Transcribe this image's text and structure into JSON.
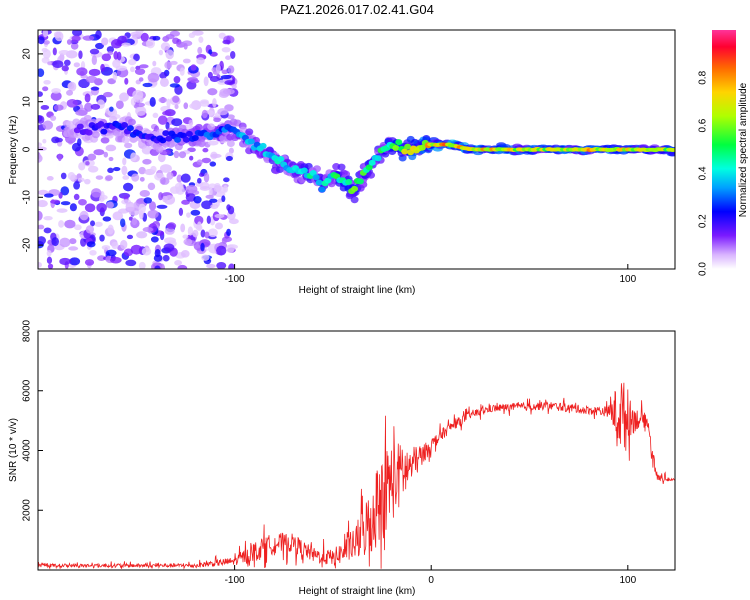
{
  "figure_title": "PAZ1.2026.017.02.41.G04",
  "chart_data": [
    {
      "type": "heatmap",
      "title": "PAZ1.2026.017.02.41.G04",
      "xlabel": "Height of straight line (km)",
      "ylabel": "Frequency (Hz)",
      "xlim": [
        -200,
        124
      ],
      "ylim": [
        -25,
        25
      ],
      "x_ticks": [
        -100,
        100
      ],
      "y_ticks": [
        -20,
        -10,
        0,
        10,
        20
      ],
      "colorbar": {
        "label": "Normalized spectral amplitude",
        "range": [
          0,
          1
        ],
        "ticks": [
          "0.0",
          "0.2",
          "0.4",
          "0.6",
          "0.8"
        ],
        "tick_values": [
          0.0,
          0.2,
          0.4,
          0.6,
          0.8
        ],
        "colors": [
          "#ffffff",
          "#d9b3ff",
          "#7a1aff",
          "#0000ff",
          "#00d8ff",
          "#00ff66",
          "#c8ff00",
          "#ffd400",
          "#ff5a00",
          "#ff0030"
        ]
      },
      "ridge": {
        "x": [
          -180,
          -160,
          -140,
          -120,
          -100,
          -90,
          -80,
          -70,
          -60,
          -55,
          -50,
          -45,
          -40,
          -35,
          -30,
          -25,
          -20,
          -15,
          -10,
          0,
          10,
          20,
          40,
          60,
          80,
          100,
          124
        ],
        "freq": [
          4,
          5,
          2,
          3,
          4,
          1,
          -2,
          -4,
          -5,
          -8,
          -5,
          -6,
          -8,
          -6,
          -3,
          0,
          1,
          0,
          0,
          1,
          1,
          0,
          0,
          0,
          0,
          0,
          0
        ],
        "amplitude": [
          0.2,
          0.25,
          0.25,
          0.3,
          0.35,
          0.4,
          0.45,
          0.4,
          0.5,
          0.45,
          0.5,
          0.55,
          0.6,
          0.6,
          0.5,
          0.55,
          0.6,
          0.7,
          0.75,
          0.8,
          0.85,
          0.8,
          0.75,
          0.7,
          0.8,
          0.75,
          0.7
        ]
      },
      "noise_region_x": [
        -200,
        -110
      ]
    },
    {
      "type": "line",
      "xlabel": "Height of straight line (km)",
      "ylabel": "SNR (10 * v/v)",
      "xlim": [
        -200,
        124
      ],
      "ylim": [
        0,
        8000
      ],
      "x_ticks": [
        -100,
        0,
        100
      ],
      "y_ticks": [
        2000,
        4000,
        6000,
        8000
      ],
      "series": [
        {
          "name": "SNR",
          "color": "#ee2020",
          "x": [
            -200,
            -120,
            -100,
            -90,
            -80,
            -70,
            -60,
            -50,
            -40,
            -35,
            -30,
            -25,
            -20,
            -15,
            -10,
            -5,
            0,
            10,
            20,
            30,
            40,
            60,
            80,
            90,
            95,
            97,
            100,
            105,
            110,
            112,
            115,
            124
          ],
          "baseline": [
            150,
            150,
            300,
            600,
            900,
            900,
            500,
            400,
            800,
            1200,
            1800,
            2500,
            3000,
            3200,
            3500,
            3800,
            4200,
            4800,
            5200,
            5400,
            5450,
            5500,
            5350,
            5300,
            5250,
            5200,
            5100,
            5050,
            5000,
            4100,
            3100,
            3000
          ],
          "noise": [
            80,
            100,
            200,
            500,
            500,
            450,
            350,
            400,
            700,
            1200,
            1800,
            2200,
            2000,
            1500,
            900,
            500,
            300,
            250,
            200,
            180,
            180,
            200,
            200,
            250,
            1500,
            2000,
            1000,
            500,
            300,
            400,
            150,
            100
          ]
        }
      ]
    }
  ]
}
